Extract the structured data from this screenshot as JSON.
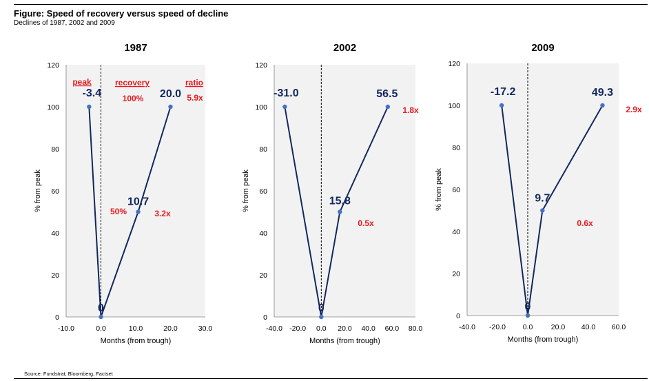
{
  "figure": {
    "title": "Figure: Speed of recovery versus speed of decline",
    "subtitle": "Declines of 1987, 2002 and 2009",
    "source": "Source: Fundstrat, Bloomberg, Factset"
  },
  "colors": {
    "line": "#12275e",
    "marker": "#4472c4",
    "label": "#12275e",
    "annotation": "#e8191e",
    "plot_background": "#f2f2f2"
  },
  "chart_data": [
    {
      "type": "line",
      "title": "1987",
      "xlabel": "Months (from trough)",
      "ylabel": "% from peak",
      "xlim": [
        -10,
        30
      ],
      "ylim": [
        0,
        120
      ],
      "xticks": [
        -10,
        0,
        10,
        20,
        30
      ],
      "xtick_labels": [
        "-10.0",
        "0.0",
        "10.0",
        "20.0",
        "30.0"
      ],
      "yticks": [
        0,
        20,
        40,
        60,
        80,
        100,
        120
      ],
      "ytick_labels": [
        "0",
        "20",
        "40",
        "60",
        "80",
        "100",
        "120"
      ],
      "grid": false,
      "vertical_reference_line_x": 0,
      "series": [
        {
          "points": [
            {
              "x": -3.4,
              "y": 100,
              "label": "-3.4"
            },
            {
              "x": 0,
              "y": 0,
              "label": "0"
            },
            {
              "x": 10.7,
              "y": 50,
              "label": "10.7"
            },
            {
              "x": 20.0,
              "y": 100,
              "label": "20.0"
            }
          ]
        }
      ],
      "annotations": [
        {
          "text": "peak",
          "underline": true
        },
        {
          "text": "recovery",
          "underline": true
        },
        {
          "text": "ratio",
          "underline": true
        },
        {
          "text": "100%"
        },
        {
          "text": "5.9x"
        },
        {
          "text": "50%"
        },
        {
          "text": "3.2x"
        }
      ]
    },
    {
      "type": "line",
      "title": "2002",
      "xlabel": "Months (from trough)",
      "ylabel": "% from peak",
      "xlim": [
        -40,
        80
      ],
      "ylim": [
        0,
        120
      ],
      "xticks": [
        -40,
        -20,
        0,
        20,
        40,
        60,
        80
      ],
      "xtick_labels": [
        "-40.0",
        "-20.0",
        "0.0",
        "20.0",
        "40.0",
        "60.0",
        "80.0"
      ],
      "yticks": [
        0,
        20,
        40,
        60,
        80,
        100,
        120
      ],
      "ytick_labels": [
        "0",
        "20",
        "40",
        "60",
        "80",
        "100",
        "120"
      ],
      "grid": false,
      "vertical_reference_line_x": 0,
      "series": [
        {
          "points": [
            {
              "x": -31.0,
              "y": 100,
              "label": "-31.0"
            },
            {
              "x": 0,
              "y": 0,
              "label": "0"
            },
            {
              "x": 15.8,
              "y": 50,
              "label": "15.8"
            },
            {
              "x": 56.5,
              "y": 100,
              "label": "56.5"
            }
          ]
        }
      ],
      "annotations": [
        {
          "text": "1.8x"
        },
        {
          "text": "0.5x"
        }
      ]
    },
    {
      "type": "line",
      "title": "2009",
      "xlabel": "Months (from trough)",
      "ylabel": "% from peak",
      "xlim": [
        -40,
        60
      ],
      "ylim": [
        0,
        120
      ],
      "xticks": [
        -40,
        -20,
        0,
        20,
        40,
        60
      ],
      "xtick_labels": [
        "-40.0",
        "-20.0",
        "0.0",
        "20.0",
        "40.0",
        "60.0"
      ],
      "yticks": [
        0,
        20,
        40,
        60,
        80,
        100,
        120
      ],
      "ytick_labels": [
        "0",
        "20",
        "40",
        "60",
        "80",
        "100",
        "120"
      ],
      "grid": false,
      "vertical_reference_line_x": 0,
      "series": [
        {
          "points": [
            {
              "x": -17.2,
              "y": 100,
              "label": "-17.2"
            },
            {
              "x": 0,
              "y": 0,
              "label": "0"
            },
            {
              "x": 9.7,
              "y": 50,
              "label": "9.7"
            },
            {
              "x": 49.3,
              "y": 100,
              "label": "49.3"
            }
          ]
        }
      ],
      "annotations": [
        {
          "text": "2.9x"
        },
        {
          "text": "0.6x"
        }
      ]
    }
  ]
}
